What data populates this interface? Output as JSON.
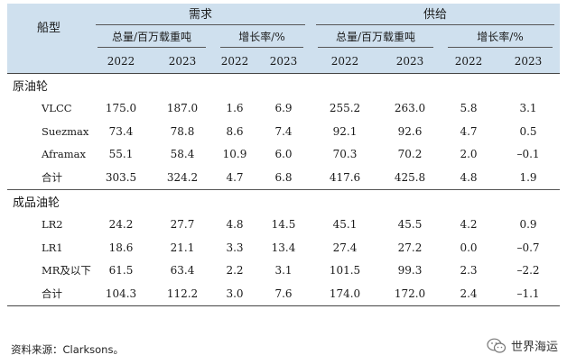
{
  "header": {
    "ship_type": "船型",
    "demand": "需求",
    "supply": "供给",
    "total_label": "总量/百万载重吨",
    "growth_label": "增长率/%",
    "years": [
      "2022",
      "2023"
    ]
  },
  "sections": [
    {
      "name": "原油轮",
      "rows": [
        {
          "name": "VLCC",
          "values": [
            "175.0",
            "187.0",
            "1.6",
            "6.9",
            "255.2",
            "263.0",
            "5.8",
            "3.1"
          ]
        },
        {
          "name": "Suezmax",
          "values": [
            "73.4",
            "78.8",
            "8.6",
            "7.4",
            "92.1",
            "92.6",
            "4.7",
            "0.5"
          ]
        },
        {
          "name": "Aframax",
          "values": [
            "55.1",
            "58.4",
            "10.9",
            "6.0",
            "70.3",
            "70.2",
            "2.0",
            "–0.1"
          ]
        },
        {
          "name": "合计",
          "values": [
            "303.5",
            "324.2",
            "4.7",
            "6.8",
            "417.6",
            "425.8",
            "4.8",
            "1.9"
          ]
        }
      ]
    },
    {
      "name": "成品油轮",
      "rows": [
        {
          "name": "LR2",
          "values": [
            "24.2",
            "27.7",
            "4.8",
            "14.5",
            "45.1",
            "45.5",
            "4.2",
            "0.9"
          ]
        },
        {
          "name": "LR1",
          "values": [
            "18.6",
            "21.1",
            "3.3",
            "13.4",
            "27.4",
            "27.2",
            "0.0",
            "–0.7"
          ]
        },
        {
          "name": "MR及以下",
          "values": [
            "61.5",
            "63.4",
            "2.2",
            "3.1",
            "101.5",
            "99.3",
            "2.3",
            "–2.2"
          ]
        },
        {
          "name": "合计",
          "values": [
            "104.3",
            "112.2",
            "3.0",
            "7.6",
            "174.0",
            "172.0",
            "2.4",
            "–1.1"
          ]
        }
      ]
    }
  ],
  "source": "资料来源：Clarksons。",
  "watermark": {
    "text": "世界海运",
    "icon": "wechat-icon"
  },
  "colors": {
    "header_bg": "#cfe0ee"
  }
}
